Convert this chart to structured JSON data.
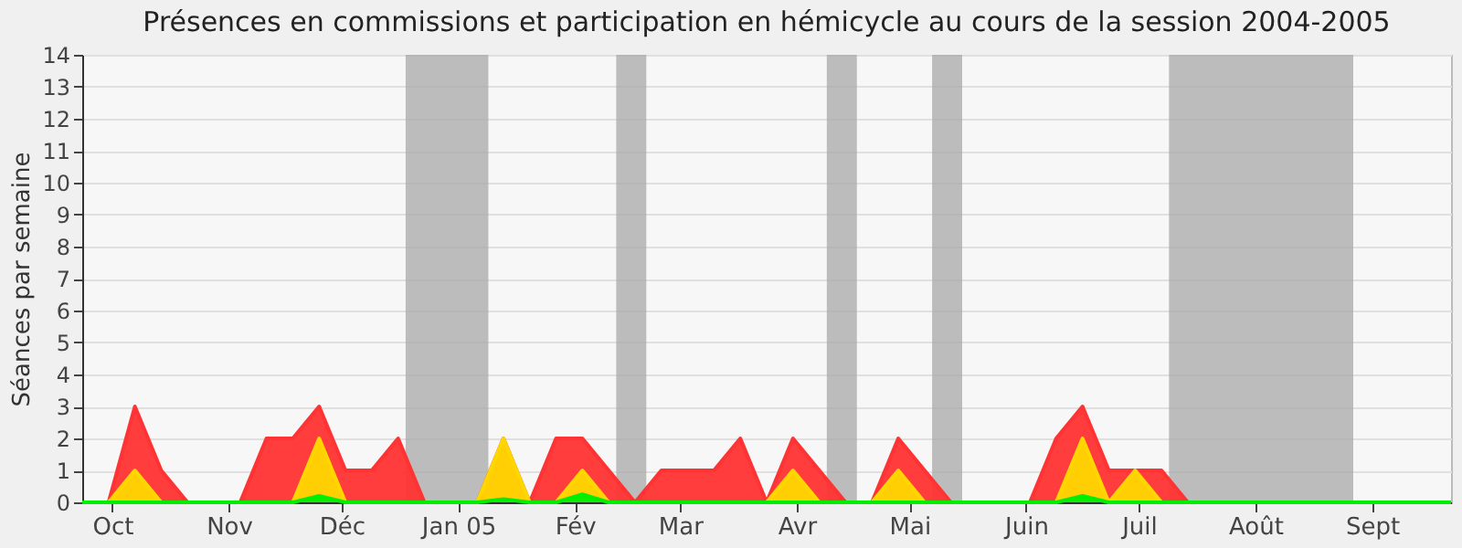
{
  "chart_data": {
    "type": "area",
    "title": "Présences en commissions et participation en hémicycle au cours de la session 2004-2005",
    "ylabel": "Séances par semaine",
    "x": [
      "2004-09-23",
      "2004-09-30",
      "2004-10-07",
      "2004-10-14",
      "2004-10-21",
      "2004-10-28",
      "2004-11-04",
      "2004-11-11",
      "2004-11-18",
      "2004-11-25",
      "2004-12-02",
      "2004-12-09",
      "2004-12-16",
      "2004-12-23",
      "2004-12-30",
      "2005-01-06",
      "2005-01-13",
      "2005-01-20",
      "2005-01-27",
      "2005-02-03",
      "2005-02-10",
      "2005-02-17",
      "2005-02-24",
      "2005-03-03",
      "2005-03-10",
      "2005-03-17",
      "2005-03-24",
      "2005-03-31",
      "2005-04-07",
      "2005-04-14",
      "2005-04-21",
      "2005-04-28",
      "2005-05-05",
      "2005-05-12",
      "2005-05-19",
      "2005-05-26",
      "2005-06-02",
      "2005-06-09",
      "2005-06-16",
      "2005-06-23",
      "2005-06-30",
      "2005-07-07",
      "2005-07-14",
      "2005-07-21",
      "2005-07-28",
      "2005-08-04",
      "2005-08-11",
      "2005-08-18",
      "2005-08-25",
      "2005-09-01",
      "2005-09-08",
      "2005-09-15",
      "2005-09-22"
    ],
    "series": [
      {
        "color": "#ff3333",
        "values": [
          0,
          0,
          3,
          1,
          0,
          0,
          0,
          2,
          2,
          3,
          1,
          1,
          2,
          0,
          0,
          0,
          2,
          0,
          2,
          2,
          1,
          0,
          1,
          1,
          1,
          2,
          0,
          2,
          1,
          0,
          0,
          2,
          1,
          0,
          0,
          0,
          0,
          2,
          3,
          1,
          1,
          1,
          0,
          0,
          0,
          0,
          0,
          0,
          0,
          0,
          0,
          0,
          0
        ]
      },
      {
        "color": "#ffd700",
        "values": [
          0,
          0,
          1,
          0,
          0,
          0,
          0,
          0,
          0,
          2,
          0,
          0,
          0,
          0,
          0,
          0,
          2,
          0,
          0,
          1,
          0,
          0,
          0,
          0,
          0,
          0,
          0,
          1,
          0,
          0,
          0,
          1,
          0,
          0,
          0,
          0,
          0,
          0,
          2,
          0,
          1,
          0,
          0,
          0,
          0,
          0,
          0,
          0,
          0,
          0,
          0,
          0,
          0
        ]
      },
      {
        "color": "#00ee00",
        "values": [
          0,
          0,
          0,
          0,
          0,
          0,
          0,
          0,
          0,
          0.2,
          0,
          0,
          0,
          0,
          0,
          0,
          0.1,
          0,
          0,
          0.25,
          0,
          0,
          0,
          0,
          0,
          0,
          0,
          0,
          0,
          0,
          0,
          0,
          0,
          0,
          0,
          0,
          0,
          0,
          0.2,
          0,
          0,
          0,
          0,
          0,
          0,
          0,
          0,
          0,
          0,
          0,
          0,
          0,
          0
        ]
      }
    ],
    "xlim": [
      "2004-09-23",
      "2005-09-22"
    ],
    "xticks": [
      {
        "value": "2004-10-01",
        "label": "Oct"
      },
      {
        "value": "2004-11-01",
        "label": "Nov"
      },
      {
        "value": "2004-12-01",
        "label": "Déc"
      },
      {
        "value": "2005-01-01",
        "label": "Jan 05"
      },
      {
        "value": "2005-02-01",
        "label": "Fév"
      },
      {
        "value": "2005-03-01",
        "label": "Mar"
      },
      {
        "value": "2005-04-01",
        "label": "Avr"
      },
      {
        "value": "2005-05-01",
        "label": "Mai"
      },
      {
        "value": "2005-06-01",
        "label": "Juin"
      },
      {
        "value": "2005-07-01",
        "label": "Juil"
      },
      {
        "value": "2005-08-01",
        "label": "Août"
      },
      {
        "value": "2005-09-01",
        "label": "Sept"
      }
    ],
    "ylim": [
      0,
      14
    ],
    "yticks": [
      0,
      1,
      2,
      3,
      4,
      5,
      6,
      7,
      8,
      9,
      10,
      11,
      12,
      13,
      14
    ],
    "bands": [
      {
        "axis": "x",
        "from": "2004-12-18",
        "to": "2005-01-09",
        "color": "#a8a8a8"
      },
      {
        "axis": "x",
        "from": "2005-02-12",
        "to": "2005-02-20",
        "color": "#a8a8a8"
      },
      {
        "axis": "x",
        "from": "2005-04-09",
        "to": "2005-04-17",
        "color": "#a8a8a8"
      },
      {
        "axis": "x",
        "from": "2005-05-07",
        "to": "2005-05-15",
        "color": "#a8a8a8"
      },
      {
        "axis": "x",
        "from": "2005-07-09",
        "to": "2005-08-27",
        "color": "#a8a8a8"
      }
    ],
    "grid": "y"
  }
}
